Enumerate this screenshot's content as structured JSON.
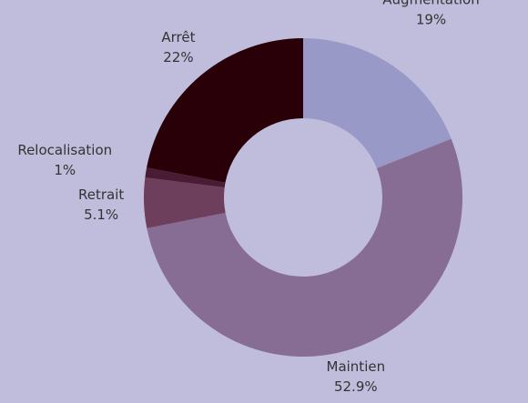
{
  "chart_data": {
    "type": "donut",
    "categories": [
      "Augmentation",
      "Maintien",
      "Retrait",
      "Relocalisation",
      "Arrêt"
    ],
    "values": [
      19,
      52.9,
      5.1,
      1,
      22
    ],
    "value_labels": [
      "19%",
      "52.9%",
      "5.1%",
      "1%",
      "22%"
    ],
    "colors": [
      "#9999c8",
      "#876c93",
      "#6e3f5c",
      "#4a1c33",
      "#2a0008"
    ]
  }
}
